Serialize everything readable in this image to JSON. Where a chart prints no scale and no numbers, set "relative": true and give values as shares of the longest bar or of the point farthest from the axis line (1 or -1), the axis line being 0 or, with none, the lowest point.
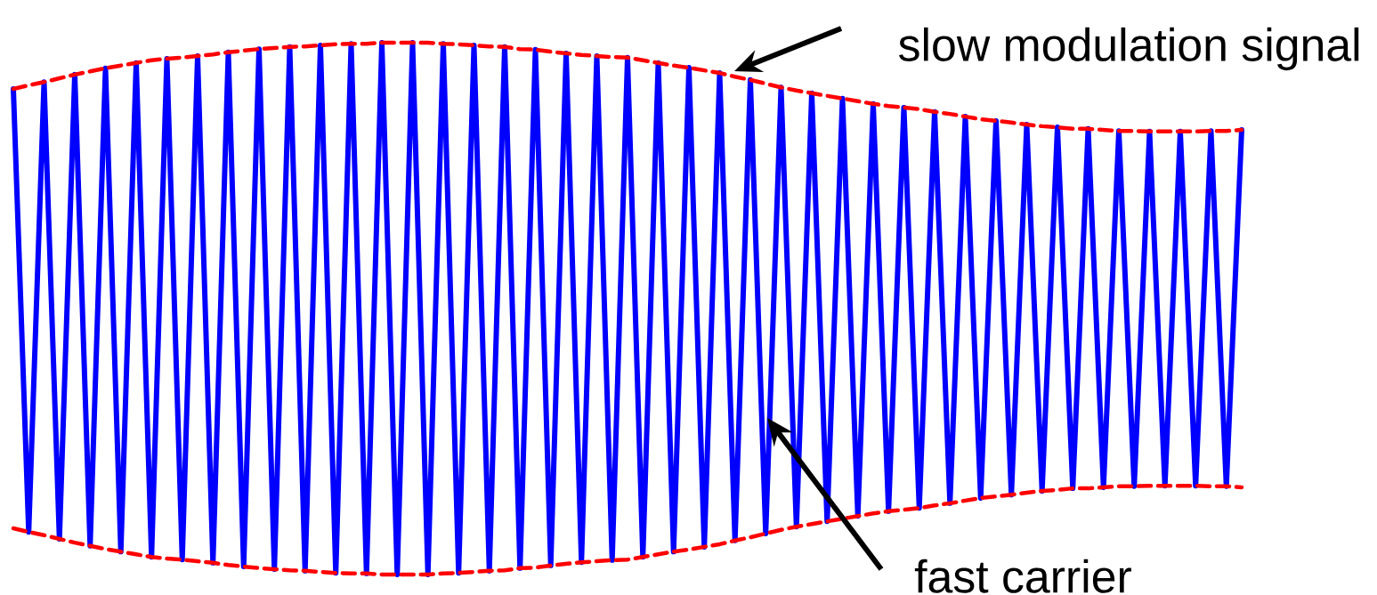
{
  "chart_data": {
    "type": "line",
    "relative": true,
    "marker": "none",
    "categories": [
      null,
      null,
      null,
      null,
      null,
      null,
      null,
      null,
      null,
      null,
      null,
      null,
      null,
      null,
      null,
      null,
      null,
      null,
      null,
      null,
      null,
      null,
      null,
      null,
      null,
      null,
      null,
      null,
      null,
      null,
      null,
      null,
      null,
      null,
      null,
      null,
      null,
      null,
      null,
      null,
      null,
      null,
      null,
      null,
      null,
      null,
      null,
      null,
      null,
      null,
      null,
      null,
      null,
      null,
      null,
      null,
      null,
      null,
      null,
      null,
      null,
      null,
      null,
      null,
      null,
      null,
      null,
      null,
      null,
      null,
      null,
      null,
      null,
      null,
      null,
      null,
      null,
      null,
      null,
      null,
      null
    ],
    "series": [
      {
        "color": "#0000ff",
        "line_style": "solid",
        "values": [
          0.913,
          0.08,
          0.926,
          0.067,
          0.94,
          0.054,
          0.952,
          0.043,
          0.962,
          0.033,
          0.97,
          0.028,
          0.975,
          0.022,
          0.982,
          0.015,
          0.988,
          0.01,
          0.992,
          0.007,
          0.995,
          0.003,
          0.998,
          0.002,
          1,
          0,
          1,
          0,
          0.998,
          0.003,
          0.995,
          0.007,
          0.992,
          0.012,
          0.987,
          0.017,
          0.98,
          0.023,
          0.975,
          0.027,
          0.972,
          0.033,
          0.962,
          0.043,
          0.953,
          0.052,
          0.943,
          0.064,
          0.93,
          0.077,
          0.916,
          0.09,
          0.905,
          0.1,
          0.895,
          0.11,
          0.885,
          0.119,
          0.878,
          0.125,
          0.87,
          0.134,
          0.861,
          0.144,
          0.853,
          0.15,
          0.846,
          0.157,
          0.841,
          0.162,
          0.838,
          0.164,
          0.834,
          0.166,
          0.833,
          0.167,
          0.833,
          0.167,
          0.834,
          0.166,
          0.836
        ]
      },
      {
        "color": "#ff0000",
        "line_style": "dashed",
        "values": [
          0.913,
          0.92,
          0.926,
          0.933,
          0.94,
          0.946,
          0.952,
          0.957,
          0.962,
          0.967,
          0.97,
          0.972,
          0.975,
          0.978,
          0.982,
          0.985,
          0.988,
          0.99,
          0.992,
          0.993,
          0.995,
          0.997,
          0.998,
          0.998,
          1,
          1,
          1,
          1,
          0.998,
          0.997,
          0.995,
          0.993,
          0.992,
          0.988,
          0.987,
          0.983,
          0.98,
          0.977,
          0.975,
          0.973,
          0.972,
          0.967,
          0.962,
          0.957,
          0.953,
          0.948,
          0.943,
          0.936,
          0.93,
          0.923,
          0.916,
          0.91,
          0.905,
          0.9,
          0.895,
          0.89,
          0.885,
          0.881,
          0.878,
          0.875,
          0.87,
          0.866,
          0.861,
          0.856,
          0.853,
          0.85,
          0.846,
          0.843,
          0.841,
          0.838,
          0.838,
          0.836,
          0.834,
          0.834,
          0.833,
          0.833,
          0.833,
          0.833,
          0.834,
          0.834,
          0.836
        ]
      },
      {
        "color": "#ff0000",
        "line_style": "dashed",
        "values": [
          0.087,
          0.08,
          0.074,
          0.067,
          0.06,
          0.054,
          0.048,
          0.043,
          0.038,
          0.033,
          0.03,
          0.028,
          0.025,
          0.022,
          0.018,
          0.015,
          0.012,
          0.01,
          0.008,
          0.007,
          0.005,
          0.003,
          0.002,
          0.002,
          0,
          0,
          0,
          0,
          0.002,
          0.003,
          0.005,
          0.007,
          0.008,
          0.012,
          0.013,
          0.017,
          0.02,
          0.023,
          0.025,
          0.027,
          0.028,
          0.033,
          0.038,
          0.043,
          0.047,
          0.052,
          0.057,
          0.064,
          0.07,
          0.077,
          0.084,
          0.09,
          0.095,
          0.1,
          0.105,
          0.11,
          0.115,
          0.119,
          0.122,
          0.125,
          0.13,
          0.134,
          0.139,
          0.144,
          0.147,
          0.15,
          0.154,
          0.157,
          0.159,
          0.162,
          0.162,
          0.164,
          0.166,
          0.166,
          0.167,
          0.167,
          0.167,
          0.167,
          0.166,
          0.166,
          0.164
        ]
      }
    ],
    "annotations": [
      "slow modulation signal",
      "fast carrier"
    ]
  }
}
